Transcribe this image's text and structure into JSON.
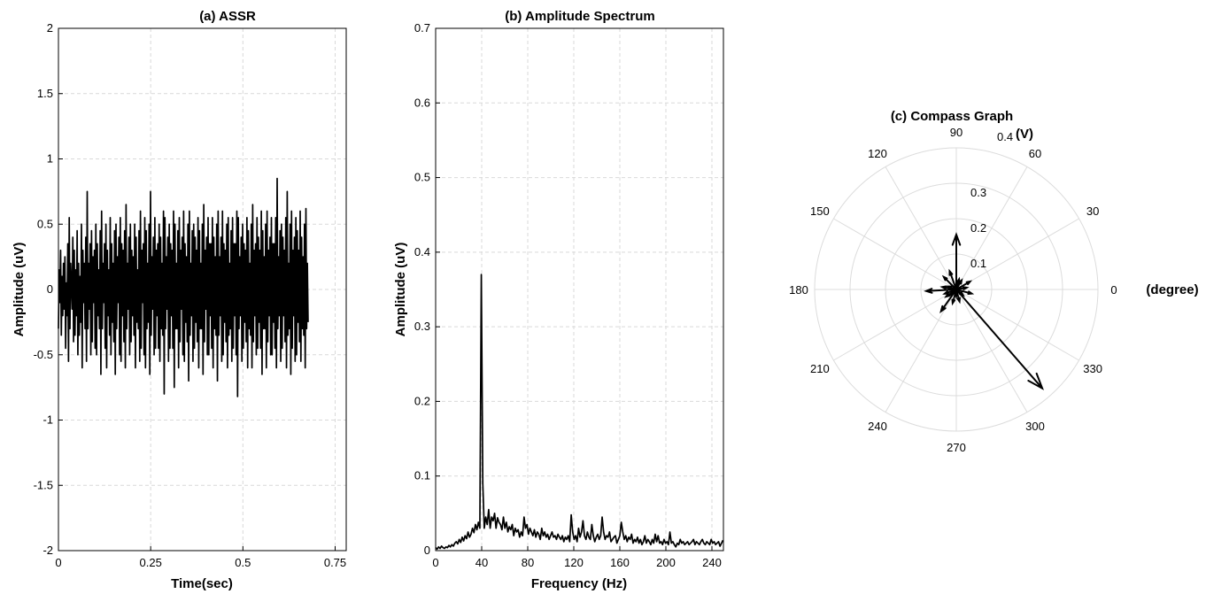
{
  "chart_data": [
    {
      "type": "line",
      "title": "(a) ASSR",
      "xlabel": "Time(sec)",
      "ylabel": "Amplitude (uV)",
      "xlim": [
        0,
        0.78
      ],
      "ylim": [
        -2,
        2
      ],
      "grid": true,
      "x_ticks": [
        0,
        0.25,
        0.5,
        0.75
      ],
      "x_tick_labels": [
        "0",
        "0.25",
        "0.5",
        "0.75"
      ],
      "y_ticks": [
        -2,
        -1.5,
        -1,
        -0.5,
        0,
        0.5,
        1,
        1.5,
        2
      ],
      "y_tick_labels": [
        "-2",
        "-1.5",
        "-1",
        "-0.5",
        "0",
        "0.5",
        "1",
        "1.5",
        "2"
      ],
      "sample_interval_sec": 0.00195,
      "values": [
        -0.3,
        0.15,
        -0.1,
        0.3,
        -0.35,
        0.1,
        -0.2,
        0.2,
        -0.15,
        0.25,
        -0.45,
        0.05,
        -0.2,
        0.35,
        -0.55,
        0.55,
        -0.3,
        0.2,
        0.05,
        -0.15,
        0.4,
        -0.4,
        0.3,
        -0.35,
        0.15,
        -0.2,
        0.45,
        -0.5,
        0.2,
        -0.35,
        0.1,
        -0.25,
        0.5,
        -0.6,
        0.3,
        -0.1,
        0.2,
        -0.3,
        0.4,
        -0.55,
        0.75,
        -0.3,
        0.2,
        -0.15,
        0.35,
        -0.5,
        0.45,
        -0.4,
        0.25,
        -0.1,
        0.3,
        -0.45,
        0.5,
        -0.5,
        0.35,
        -0.2,
        0.15,
        -0.3,
        0.45,
        -0.65,
        0.6,
        -0.3,
        0.2,
        -0.1,
        0.35,
        -0.45,
        0.5,
        -0.6,
        0.3,
        -0.2,
        0.15,
        -0.35,
        0.55,
        -0.5,
        0.35,
        -0.25,
        0.2,
        -0.4,
        0.45,
        -0.65,
        0.5,
        -0.3,
        0.25,
        -0.1,
        0.4,
        -0.5,
        0.55,
        -0.55,
        0.35,
        -0.2,
        0.3,
        -0.4,
        0.45,
        -0.6,
        0.65,
        -0.3,
        0.2,
        -0.15,
        0.4,
        -0.5,
        0.5,
        -0.4,
        0.3,
        -0.2,
        0.25,
        -0.35,
        0.5,
        -0.6,
        0.4,
        -0.25,
        0.15,
        -0.3,
        0.45,
        -0.55,
        0.6,
        -0.45,
        0.3,
        -0.1,
        0.35,
        -0.5,
        0.55,
        -0.6,
        0.45,
        -0.3,
        0.2,
        -0.25,
        0.5,
        -0.65,
        0.75,
        -0.35,
        0.25,
        -0.15,
        0.4,
        -0.5,
        0.55,
        -0.45,
        0.3,
        -0.2,
        0.35,
        -0.45,
        0.5,
        -0.55,
        0.4,
        -0.3,
        0.2,
        -0.35,
        0.6,
        -0.8,
        0.55,
        -0.3,
        0.25,
        -0.15,
        0.4,
        -0.55,
        0.5,
        -0.45,
        0.35,
        -0.2,
        0.3,
        -0.45,
        0.6,
        -0.75,
        0.5,
        -0.3,
        0.2,
        -0.3,
        0.45,
        -0.6,
        0.55,
        -0.4,
        0.3,
        -0.15,
        0.4,
        -0.5,
        0.6,
        -0.55,
        0.35,
        -0.25,
        0.25,
        -0.4,
        0.5,
        -0.7,
        0.6,
        -0.35,
        0.2,
        -0.2,
        0.45,
        -0.55,
        0.5,
        -0.45,
        0.4,
        -0.25,
        0.3,
        -0.4,
        0.55,
        -0.6,
        0.45,
        -0.3,
        0.2,
        -0.3,
        0.5,
        -0.65,
        0.65,
        -0.4,
        0.3,
        -0.15,
        0.4,
        -0.5,
        0.55,
        -0.5,
        0.35,
        -0.2,
        0.35,
        -0.45,
        0.55,
        -0.6,
        0.4,
        -0.3,
        0.25,
        -0.35,
        0.5,
        -0.7,
        0.6,
        -0.35,
        0.25,
        -0.2,
        0.4,
        -0.55,
        0.6,
        -0.5,
        0.35,
        -0.25,
        0.3,
        -0.4,
        0.5,
        -0.6,
        0.55,
        -0.35,
        0.2,
        -0.3,
        0.45,
        -0.55,
        0.55,
        -0.45,
        0.35,
        -0.2,
        0.35,
        -0.5,
        0.6,
        -0.82,
        0.55,
        -0.3,
        0.25,
        -0.2,
        0.4,
        -0.55,
        0.5,
        -0.45,
        0.35,
        -0.25,
        0.3,
        -0.4,
        0.55,
        -0.6,
        0.45,
        -0.3,
        0.2,
        -0.35,
        0.5,
        -0.6,
        0.65,
        -0.4,
        0.3,
        -0.2,
        0.35,
        -0.5,
        0.55,
        -0.45,
        0.4,
        -0.25,
        0.3,
        -0.45,
        0.6,
        -0.65,
        0.45,
        -0.3,
        0.25,
        -0.3,
        0.5,
        -0.6,
        0.6,
        -0.4,
        0.3,
        -0.2,
        0.4,
        -0.5,
        0.55,
        -0.5,
        0.35,
        -0.25,
        0.35,
        -0.45,
        0.55,
        -0.6,
        0.85,
        -0.3,
        0.25,
        -0.2,
        0.45,
        -0.55,
        0.5,
        -0.45,
        0.4,
        -0.2,
        0.3,
        -0.4,
        0.55,
        -0.6,
        0.75,
        -0.35,
        0.2,
        -0.3,
        0.5,
        -0.65,
        0.6,
        -0.45,
        0.3,
        -0.2,
        0.4,
        -0.55,
        0.55,
        -0.5,
        0.45,
        -0.25,
        0.3,
        -0.4,
        0.6,
        -0.55,
        0.4,
        -0.3,
        0.25,
        -0.35,
        0.5,
        -0.6,
        0.62,
        -0.3,
        0.2,
        -0.25
      ],
      "series": [
        {
          "values": "values"
        }
      ]
    },
    {
      "type": "line",
      "title": "(b) Amplitude Spectrum",
      "xlabel": "Frequency (Hz)",
      "ylabel": "Amplitude (uV)",
      "xlim": [
        0,
        250
      ],
      "ylim": [
        0,
        0.7
      ],
      "grid": true,
      "x_ticks": [
        0,
        40,
        80,
        120,
        160,
        200,
        240
      ],
      "x_tick_labels": [
        "0",
        "40",
        "80",
        "120",
        "160",
        "200",
        "240"
      ],
      "y_ticks": [
        0,
        0.1,
        0.2,
        0.3,
        0.4,
        0.5,
        0.6,
        0.7
      ],
      "y_tick_labels": [
        "0",
        "0.1",
        "0.2",
        "0.3",
        "0.4",
        "0.5",
        "0.6",
        "0.7"
      ],
      "freq_resolution_hz": 1.28,
      "values": [
        0.004,
        0.002,
        0.005,
        0.003,
        0.006,
        0.004,
        0.003,
        0.005,
        0.004,
        0.007,
        0.005,
        0.008,
        0.006,
        0.01,
        0.012,
        0.009,
        0.015,
        0.011,
        0.018,
        0.013,
        0.02,
        0.016,
        0.025,
        0.018,
        0.022,
        0.03,
        0.024,
        0.035,
        0.028,
        0.038,
        0.03,
        0.37,
        0.09,
        0.03,
        0.045,
        0.035,
        0.055,
        0.03,
        0.045,
        0.04,
        0.05,
        0.03,
        0.044,
        0.038,
        0.035,
        0.028,
        0.045,
        0.03,
        0.038,
        0.025,
        0.032,
        0.028,
        0.035,
        0.02,
        0.03,
        0.025,
        0.028,
        0.018,
        0.025,
        0.02,
        0.045,
        0.03,
        0.035,
        0.022,
        0.03,
        0.025,
        0.02,
        0.028,
        0.018,
        0.025,
        0.022,
        0.015,
        0.03,
        0.02,
        0.025,
        0.018,
        0.022,
        0.015,
        0.02,
        0.025,
        0.018,
        0.02,
        0.015,
        0.022,
        0.018,
        0.015,
        0.02,
        0.012,
        0.018,
        0.015,
        0.02,
        0.012,
        0.048,
        0.025,
        0.015,
        0.02,
        0.012,
        0.03,
        0.018,
        0.025,
        0.04,
        0.02,
        0.015,
        0.025,
        0.018,
        0.015,
        0.035,
        0.02,
        0.012,
        0.018,
        0.022,
        0.015,
        0.02,
        0.045,
        0.025,
        0.015,
        0.02,
        0.018,
        0.025,
        0.012,
        0.015,
        0.018,
        0.02,
        0.01,
        0.015,
        0.02,
        0.038,
        0.025,
        0.015,
        0.02,
        0.012,
        0.018,
        0.015,
        0.022,
        0.01,
        0.015,
        0.012,
        0.018,
        0.01,
        0.015,
        0.008,
        0.012,
        0.02,
        0.01,
        0.015,
        0.012,
        0.008,
        0.015,
        0.01,
        0.022,
        0.012,
        0.02,
        0.01,
        0.012,
        0.008,
        0.015,
        0.01,
        0.012,
        0.008,
        0.025,
        0.01,
        0.012,
        0.008,
        0.005,
        0.01,
        0.008,
        0.015,
        0.01,
        0.012,
        0.008,
        0.01,
        0.012,
        0.008,
        0.01,
        0.012,
        0.015,
        0.008,
        0.012,
        0.01,
        0.008,
        0.012,
        0.015,
        0.01,
        0.008,
        0.012,
        0.01,
        0.008,
        0.015,
        0.01,
        0.012,
        0.008,
        0.01,
        0.012,
        0.006,
        0.01,
        0.014,
        0.008,
        0.01,
        0.012,
        0.005,
        0.008
      ],
      "series": [
        {
          "values": "values"
        }
      ]
    },
    {
      "type": "compass",
      "title": "(c) Compass Graph",
      "radial_unit_label": "(V)",
      "angle_unit_label": "(degree)",
      "rmax": 0.4,
      "radial_ticks": [
        0.1,
        0.2,
        0.3,
        0.4
      ],
      "radial_tick_labels": [
        "0.1",
        "0.2",
        "0.3",
        "0.4"
      ],
      "angle_ticks": [
        0,
        30,
        60,
        90,
        120,
        150,
        180,
        210,
        240,
        270,
        300,
        330
      ],
      "angle_tick_labels": [
        "0",
        "30",
        "60",
        "90",
        "120",
        "150",
        "180",
        "210",
        "240",
        "270",
        "300",
        "330"
      ],
      "grid": true,
      "vectors": [
        {
          "r": 0.37,
          "angle_deg": 311
        },
        {
          "r": 0.155,
          "angle_deg": 90
        },
        {
          "r": 0.085,
          "angle_deg": 183
        },
        {
          "r": 0.075,
          "angle_deg": 235
        },
        {
          "r": 0.05,
          "angle_deg": 135
        },
        {
          "r": 0.045,
          "angle_deg": 30
        },
        {
          "r": 0.04,
          "angle_deg": 255
        },
        {
          "r": 0.055,
          "angle_deg": 110
        },
        {
          "r": 0.035,
          "angle_deg": 200
        },
        {
          "r": 0.045,
          "angle_deg": 345
        },
        {
          "r": 0.03,
          "angle_deg": 60
        },
        {
          "r": 0.035,
          "angle_deg": 285
        },
        {
          "r": 0.025,
          "angle_deg": 160
        },
        {
          "r": 0.03,
          "angle_deg": 10
        },
        {
          "r": 0.02,
          "angle_deg": 225
        },
        {
          "r": 0.025,
          "angle_deg": 320
        },
        {
          "r": 0.04,
          "angle_deg": 170
        },
        {
          "r": 0.03,
          "angle_deg": 75
        },
        {
          "r": 0.02,
          "angle_deg": 270
        },
        {
          "r": 0.035,
          "angle_deg": 215
        }
      ]
    }
  ]
}
